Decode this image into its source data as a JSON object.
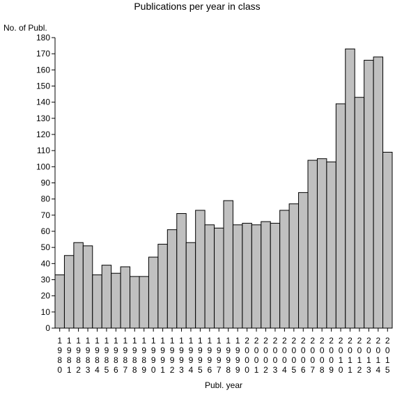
{
  "chart_data": {
    "type": "bar",
    "title": "Publications per year in class",
    "xlabel": "Publ. year",
    "ylabel": "No. of Publ.",
    "ylim": [
      0,
      180
    ],
    "ytick_step": 10,
    "yticks": [
      "0",
      "10",
      "20",
      "30",
      "40",
      "50",
      "60",
      "70",
      "80",
      "90",
      "100",
      "110",
      "120",
      "130",
      "140",
      "150",
      "160",
      "170",
      "180"
    ],
    "grid": false,
    "categories": [
      "1980",
      "1981",
      "1982",
      "1983",
      "1984",
      "1985",
      "1986",
      "1987",
      "1988",
      "1989",
      "1990",
      "1991",
      "1992",
      "1993",
      "1994",
      "1995",
      "1996",
      "1997",
      "1998",
      "1999",
      "2000",
      "2001",
      "2002",
      "2003",
      "2004",
      "2005",
      "2006",
      "2007",
      "2008",
      "2009",
      "2010",
      "2011",
      "2012",
      "2013",
      "2014",
      "2015"
    ],
    "values": [
      33,
      45,
      53,
      51,
      33,
      39,
      34,
      38,
      32,
      32,
      44,
      52,
      61,
      71,
      53,
      73,
      64,
      62,
      79,
      64,
      65,
      64,
      66,
      65,
      73,
      77,
      84,
      104,
      105,
      103,
      139,
      173,
      143,
      166,
      168,
      109
    ],
    "bar_color": "#c0c0c0",
    "edge_color": "#000000"
  }
}
